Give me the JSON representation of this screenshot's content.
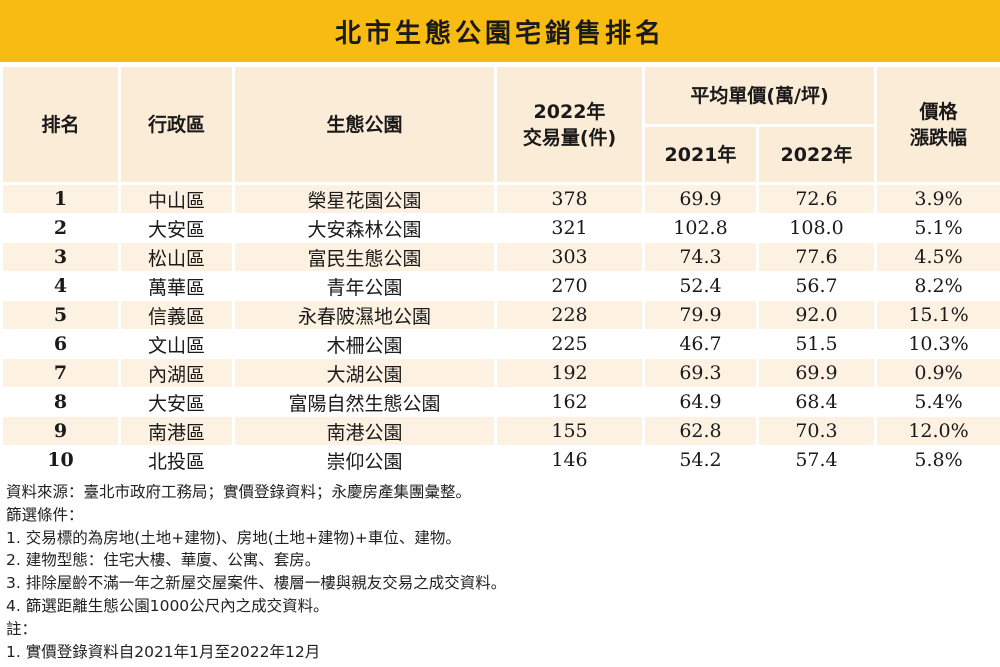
{
  "title": "北市生態公園宅銷售排名",
  "headers": {
    "rank": "排名",
    "district": "行政區",
    "park": "生態公園",
    "volume": "2022年\n交易量(件)",
    "avg_price": "平均單價(萬/坪)",
    "y2021": "2021年",
    "y2022": "2022年",
    "change": "價格\n漲跌幅"
  },
  "rows": [
    {
      "rank": "1",
      "district": "中山區",
      "park": "榮星花園公園",
      "volume": "378",
      "p2021": "69.9",
      "p2022": "72.6",
      "change": "3.9%"
    },
    {
      "rank": "2",
      "district": "大安區",
      "park": "大安森林公園",
      "volume": "321",
      "p2021": "102.8",
      "p2022": "108.0",
      "change": "5.1%"
    },
    {
      "rank": "3",
      "district": "松山區",
      "park": "富民生態公園",
      "volume": "303",
      "p2021": "74.3",
      "p2022": "77.6",
      "change": "4.5%"
    },
    {
      "rank": "4",
      "district": "萬華區",
      "park": "青年公園",
      "volume": "270",
      "p2021": "52.4",
      "p2022": "56.7",
      "change": "8.2%"
    },
    {
      "rank": "5",
      "district": "信義區",
      "park": "永春陂濕地公園",
      "volume": "228",
      "p2021": "79.9",
      "p2022": "92.0",
      "change": "15.1%"
    },
    {
      "rank": "6",
      "district": "文山區",
      "park": "木柵公園",
      "volume": "225",
      "p2021": "46.7",
      "p2022": "51.5",
      "change": "10.3%"
    },
    {
      "rank": "7",
      "district": "內湖區",
      "park": "大湖公園",
      "volume": "192",
      "p2021": "69.3",
      "p2022": "69.9",
      "change": "0.9%"
    },
    {
      "rank": "8",
      "district": "大安區",
      "park": "富陽自然生態公園",
      "volume": "162",
      "p2021": "64.9",
      "p2022": "68.4",
      "change": "5.4%"
    },
    {
      "rank": "9",
      "district": "南港區",
      "park": "南港公園",
      "volume": "155",
      "p2021": "62.8",
      "p2022": "70.3",
      "change": "12.0%"
    },
    {
      "rank": "10",
      "district": "北投區",
      "park": "崇仰公園",
      "volume": "146",
      "p2021": "54.2",
      "p2022": "57.4",
      "change": "5.8%"
    }
  ],
  "notes": [
    "資料來源：臺北市政府工務局；實價登錄資料；永慶房產集團彙整。",
    "篩選條件：",
    "1. 交易標的為房地(土地+建物)、房地(土地+建物)+車位、建物。",
    "2. 建物型態：住宅大樓、華廈、公寓、套房。",
    "3. 排除屋齡不滿一年之新屋交屋案件、樓層一樓與親友交易之成交資料。",
    "4. 篩選距離生態公園1000公尺內之成交資料。",
    "註：",
    "1. 實價登錄資料自2021年1月至2022年12月"
  ],
  "colors": {
    "title_bg": "#f7bb12",
    "header_bg": "#fbecd7",
    "stripe_bg": "#fdf1e2"
  }
}
